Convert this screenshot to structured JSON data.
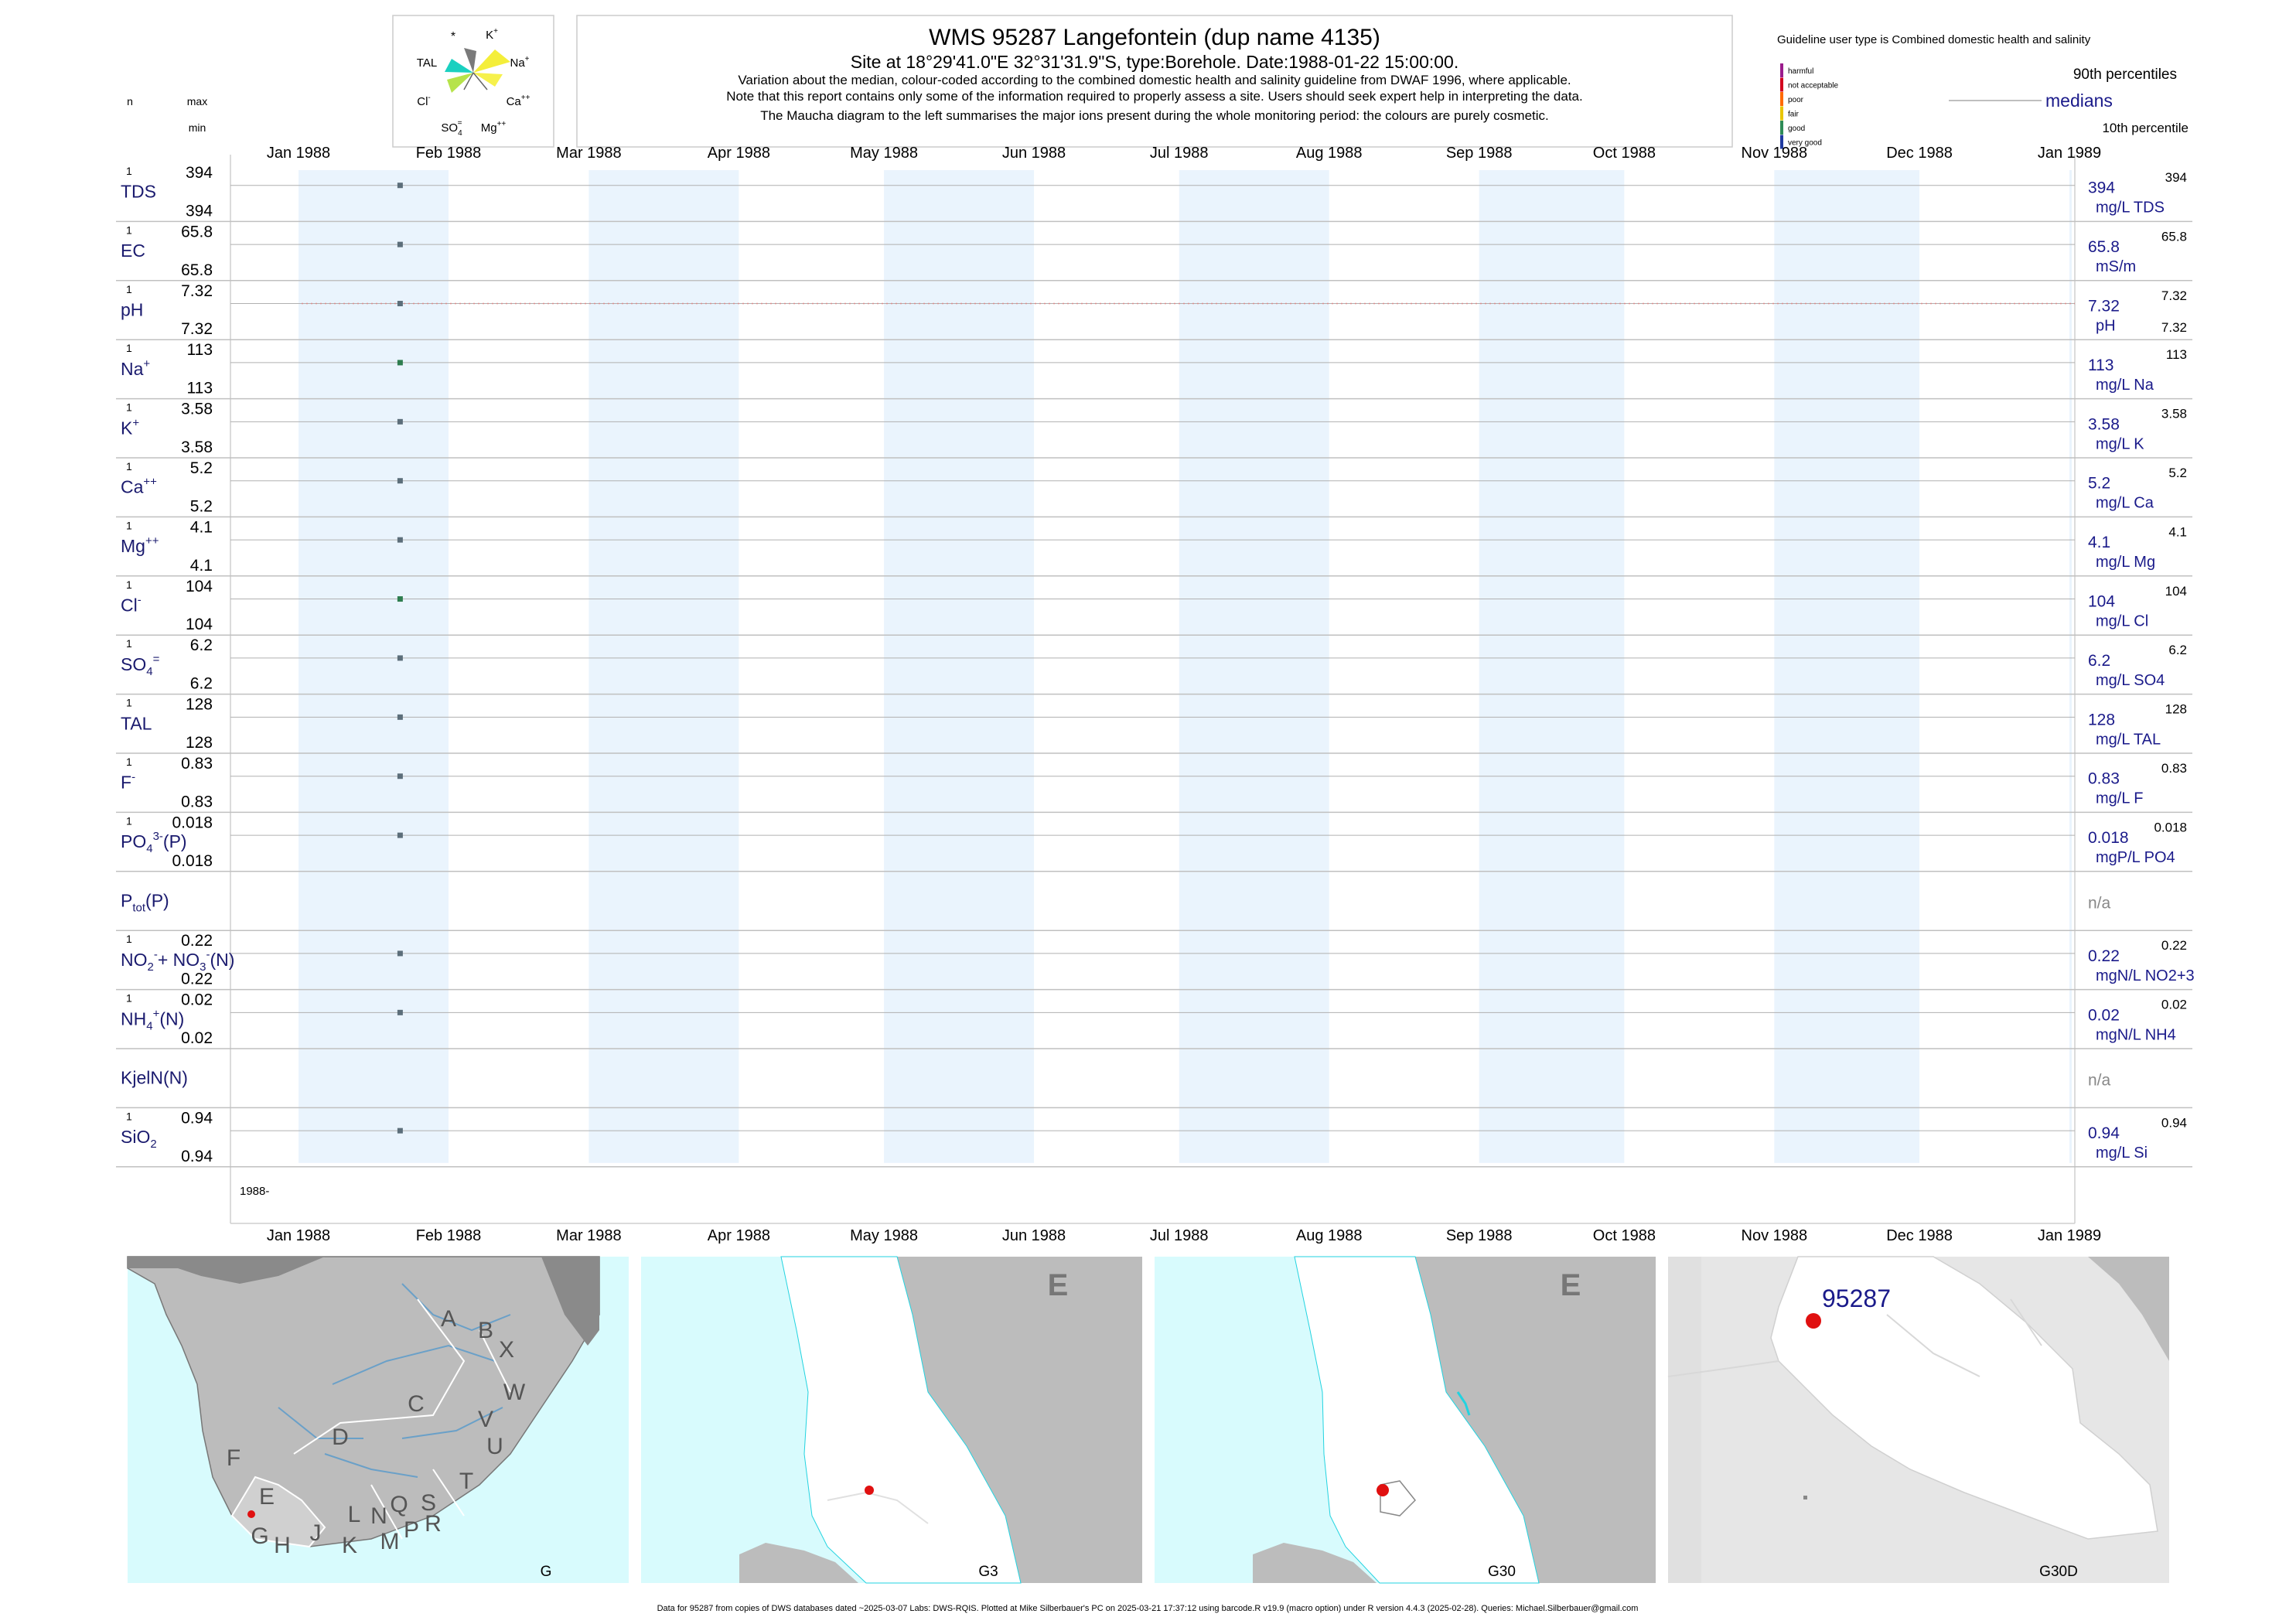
{
  "header": {
    "title": "WMS 95287  Langefontein (dup name 4135)",
    "subtitle": "Site at 18°29'41.0\"E 32°31'31.9\"S, type:Borehole. Date:1988-01-22 15:00:00.",
    "note1": "Variation about the median,  colour-coded according to the combined domestic health and salinity guideline from DWAF 1996, where applicable.",
    "note2": "Note that this report contains only some of the information required to properly assess a site. Users should seek expert help in interpreting the data.",
    "note3": "The Maucha diagram to the left summarises the major ions present during the whole monitoring period: the colours are purely cosmetic."
  },
  "maucha": {
    "star": "*",
    "k": "K",
    "k_sup": "+",
    "na": "Na",
    "na_sup": "+",
    "tal": "TAL",
    "ca": "Ca",
    "ca_sup": "++",
    "cl": "Cl",
    "cl_sup": "-",
    "so4": "SO",
    "so4_sub": "4",
    "so4_sup": "=",
    "mg": "Mg",
    "mg_sup": "++"
  },
  "col_headers": {
    "n": "n",
    "max": "max",
    "min": "min"
  },
  "legend": {
    "guideline": "Guideline user type is Combined domestic health and salinity",
    "items": [
      {
        "label": "harmful",
        "color": "#9b1c8c"
      },
      {
        "label": "not acceptable",
        "color": "#d2001e"
      },
      {
        "label": "poor",
        "color": "#ff6a00"
      },
      {
        "label": "fair",
        "color": "#e8c500"
      },
      {
        "label": "good",
        "color": "#2e8b57"
      },
      {
        "label": "very good",
        "color": "#1f3aa0"
      }
    ],
    "p90": "90th percentiles",
    "medians": "medians",
    "p10": "10th percentile"
  },
  "chart_data": {
    "type": "scatter",
    "x_axis": {
      "ticks": [
        "Jan 1988",
        "Feb 1988",
        "Mar 1988",
        "Apr 1988",
        "May 1988",
        "Jun 1988",
        "Jul 1988",
        "Aug 1988",
        "Sep 1988",
        "Oct 1988",
        "Nov 1988",
        "Dec 1988",
        "Jan 1989"
      ],
      "year_label": "1988-",
      "range": [
        "1988-01-01",
        "1989-01-01"
      ]
    },
    "sample_date": "1988-01-22",
    "panels": [
      {
        "label": "TDS",
        "n": "1",
        "max": "394",
        "min": "394",
        "median": "394",
        "unit": "mg/L TDS",
        "p90": "394",
        "p10": "",
        "value": 394,
        "color": "#5c6e7a",
        "guideline_line": false
      },
      {
        "label": "EC",
        "n": "1",
        "max": "65.8",
        "min": "65.8",
        "median": "65.8",
        "unit": "mS/m",
        "p90": "65.8",
        "p10": "",
        "value": 65.8,
        "color": "#5c6e7a",
        "guideline_line": false
      },
      {
        "label": "pH",
        "n": "1",
        "max": "7.32",
        "min": "7.32",
        "median": "7.32",
        "unit": "pH",
        "p90": "7.32",
        "p10": "7.32",
        "value": 7.32,
        "color": "#5c6e7a",
        "guideline_line": true
      },
      {
        "label": "Na",
        "sup": "+",
        "n": "1",
        "max": "113",
        "min": "113",
        "median": "113",
        "unit": "mg/L Na",
        "p90": "113",
        "p10": "",
        "value": 113,
        "color": "#2e7d4f",
        "guideline_line": false
      },
      {
        "label": "K",
        "sup": "+",
        "n": "1",
        "max": "3.58",
        "min": "3.58",
        "median": "3.58",
        "unit": "mg/L K",
        "p90": "3.58",
        "p10": "",
        "value": 3.58,
        "color": "#5c6e7a",
        "guideline_line": false
      },
      {
        "label": "Ca",
        "sup": "++",
        "n": "1",
        "max": "5.2",
        "min": "5.2",
        "median": "5.2",
        "unit": "mg/L Ca",
        "p90": "5.2",
        "p10": "",
        "value": 5.2,
        "color": "#5c6e7a",
        "guideline_line": false
      },
      {
        "label": "Mg",
        "sup": "++",
        "n": "1",
        "max": "4.1",
        "min": "4.1",
        "median": "4.1",
        "unit": "mg/L Mg",
        "p90": "4.1",
        "p10": "",
        "value": 4.1,
        "color": "#5c6e7a",
        "guideline_line": false
      },
      {
        "label": "Cl",
        "sup": "-",
        "n": "1",
        "max": "104",
        "min": "104",
        "median": "104",
        "unit": "mg/L Cl",
        "p90": "104",
        "p10": "",
        "value": 104,
        "color": "#2e7d4f",
        "guideline_line": false
      },
      {
        "label": "SO",
        "sub": "4",
        "sup": "=",
        "n": "1",
        "max": "6.2",
        "min": "6.2",
        "median": "6.2",
        "unit": "mg/L SO4",
        "p90": "6.2",
        "p10": "",
        "value": 6.2,
        "color": "#5c6e7a",
        "guideline_line": false
      },
      {
        "label": "TAL",
        "n": "1",
        "max": "128",
        "min": "128",
        "median": "128",
        "unit": "mg/L TAL",
        "p90": "128",
        "p10": "",
        "value": 128,
        "color": "#5c6e7a",
        "guideline_line": false
      },
      {
        "label": "F",
        "sup": "-",
        "n": "1",
        "max": "0.83",
        "min": "0.83",
        "median": "0.83",
        "unit": "mg/L F",
        "p90": "0.83",
        "p10": "",
        "value": 0.83,
        "color": "#5c6e7a",
        "guideline_line": false
      },
      {
        "label": "PO",
        "sub": "4",
        "sup": "3-",
        "suffix": "(P)",
        "n": "1",
        "max": "0.018",
        "min": "0.018",
        "median": "0.018",
        "unit": "mgP/L PO4",
        "p90": "0.018",
        "p10": "",
        "value": 0.018,
        "color": "#5c6e7a",
        "guideline_line": false
      },
      {
        "label": "P",
        "sub": "tot",
        "suffix": "(P)",
        "n": "",
        "max": "",
        "min": "",
        "median": "n/a",
        "unit": "",
        "p90": "",
        "p10": "",
        "value": null,
        "color": "#5c6e7a",
        "guideline_line": false
      },
      {
        "label": "NO",
        "sub": "2",
        "sup": "-",
        "suffix": "+ NO",
        "sub2": "3",
        "sup2": "-",
        "suffix2": "(N)",
        "n": "1",
        "max": "0.22",
        "min": "0.22",
        "median": "0.22",
        "unit": "mgN/L NO2+3",
        "p90": "0.22",
        "p10": "",
        "value": 0.22,
        "color": "#5c6e7a",
        "guideline_line": false
      },
      {
        "label": "NH",
        "sub": "4",
        "sup": "+",
        "suffix": "(N)",
        "n": "1",
        "max": "0.02",
        "min": "0.02",
        "median": "0.02",
        "unit": "mgN/L NH4",
        "p90": "0.02",
        "p10": "",
        "value": 0.02,
        "color": "#5c6e7a",
        "guideline_line": false
      },
      {
        "label": "KjelN(N)",
        "n": "",
        "max": "",
        "min": "",
        "median": "n/a",
        "unit": "",
        "p90": "",
        "p10": "",
        "value": null,
        "color": "#5c6e7a",
        "guideline_line": false
      },
      {
        "label": "SiO",
        "sub": "2",
        "n": "1",
        "max": "0.94",
        "min": "0.94",
        "median": "0.94",
        "unit": "mg/L Si",
        "p90": "0.94",
        "p10": "",
        "value": 0.94,
        "color": "#5c6e7a",
        "guideline_line": false
      }
    ]
  },
  "maps": [
    {
      "caption": "G",
      "letters": [
        "A",
        "B",
        "X",
        "W",
        "C",
        "V",
        "U",
        "D",
        "T",
        "F",
        "E",
        "S",
        "R",
        "Q",
        "L",
        "N",
        "P",
        "M",
        "K",
        "J",
        "H",
        "G"
      ]
    },
    {
      "caption": "G3",
      "letters": [
        "E"
      ]
    },
    {
      "caption": "G30",
      "letters": [
        "E"
      ]
    },
    {
      "caption": "G30D",
      "letters": [],
      "site_label": "95287"
    }
  ],
  "colors": {
    "sea": "#d8fbfd",
    "coast": "#22d3e0",
    "land": "#bcbcbc",
    "dark_land": "#8a8a8a",
    "catchment": "#ffffff",
    "site": "#e01010",
    "band": "#eaf4fd",
    "axis_text": "#1a1a6e"
  },
  "footer": "Data for 95287 from copies of DWS databases dated ~2025-03-07 Labs: DWS-RQIS. Plotted at Mike Silberbauer's PC on 2025-03-21 17:37:12 using barcode.R v19.9 (macro option) under R version 4.4.3 (2025-02-28). Queries: Michael.Silberbauer@gmail.com"
}
